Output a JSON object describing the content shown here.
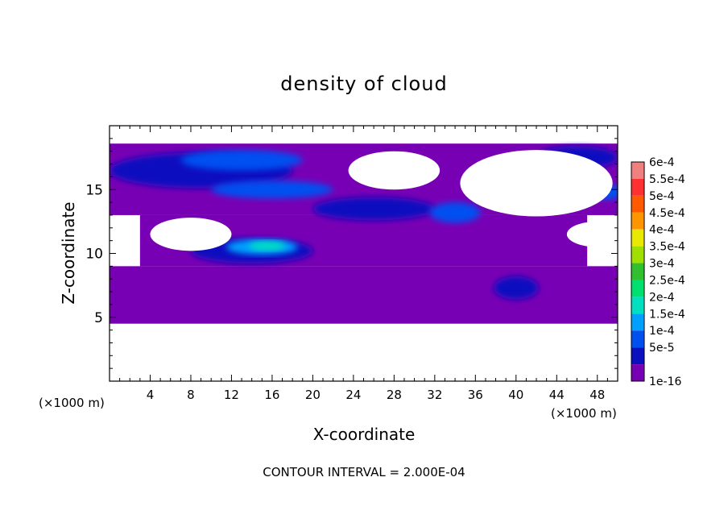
{
  "chart_data": {
    "type": "heatmap",
    "title": "density of cloud",
    "xlabel": "X-coordinate",
    "ylabel": "Z-coordinate",
    "x_unit_left": "(×1000 m)",
    "x_unit_right": "(×1000 m)",
    "xlim": [
      0,
      50
    ],
    "ylim": [
      0,
      20
    ],
    "x_ticks": [
      {
        "value": 4,
        "label": "4"
      },
      {
        "value": 8,
        "label": "8"
      },
      {
        "value": 12,
        "label": "12"
      },
      {
        "value": 16,
        "label": "16"
      },
      {
        "value": 20,
        "label": "20"
      },
      {
        "value": 24,
        "label": "24"
      },
      {
        "value": 28,
        "label": "28"
      },
      {
        "value": 32,
        "label": "32"
      },
      {
        "value": 36,
        "label": "36"
      },
      {
        "value": 40,
        "label": "40"
      },
      {
        "value": 44,
        "label": "44"
      },
      {
        "value": 48,
        "label": "48"
      }
    ],
    "y_ticks": [
      {
        "value": 5,
        "label": "5"
      },
      {
        "value": 10,
        "label": "10"
      },
      {
        "value": 15,
        "label": "15"
      }
    ],
    "footer": "CONTOUR INTERVAL = 2.000E-04",
    "colorbar": {
      "levels": [
        {
          "label": "6e-4",
          "color": "#f08080"
        },
        {
          "label": "5.5e-4",
          "color": "#ff3030"
        },
        {
          "label": "5e-4",
          "color": "#ff5a00"
        },
        {
          "label": "4.5e-4",
          "color": "#ff9600"
        },
        {
          "label": "4e-4",
          "color": "#e8e800"
        },
        {
          "label": "3.5e-4",
          "color": "#a0e000"
        },
        {
          "label": "3e-4",
          "color": "#30c030"
        },
        {
          "label": "2.5e-4",
          "color": "#00e070"
        },
        {
          "label": "2e-4",
          "color": "#00e0c0"
        },
        {
          "label": "1.5e-4",
          "color": "#00a0ff"
        },
        {
          "label": "1e-4",
          "color": "#0050f0"
        },
        {
          "label": "5e-5",
          "color": "#0a10c0"
        },
        {
          "label": "1e-16",
          "color": "#7800b4"
        }
      ]
    },
    "regions": [
      {
        "kind": "band",
        "x": [
          0,
          50
        ],
        "z": [
          4.5,
          9.0
        ],
        "level": 0
      },
      {
        "kind": "band",
        "x": [
          0,
          50
        ],
        "z": [
          13.0,
          18.6
        ],
        "level": 0
      },
      {
        "kind": "band",
        "x": [
          3,
          47
        ],
        "z": [
          9.0,
          13.0
        ],
        "level": 0
      },
      {
        "kind": "blob",
        "cx": 9,
        "cz": 16.5,
        "rx": 9,
        "rz": 1.4,
        "level": 1
      },
      {
        "kind": "blob",
        "cx": 13,
        "cz": 17.3,
        "rx": 6,
        "rz": 0.8,
        "level": 2
      },
      {
        "kind": "blob",
        "cx": 16,
        "cz": 15.0,
        "rx": 6,
        "rz": 0.7,
        "level": 2
      },
      {
        "kind": "blob",
        "cx": 26,
        "cz": 13.5,
        "rx": 6,
        "rz": 0.9,
        "level": 1
      },
      {
        "kind": "blob",
        "cx": 34,
        "cz": 13.2,
        "rx": 2.5,
        "rz": 0.8,
        "level": 2
      },
      {
        "kind": "blob",
        "cx": 14,
        "cz": 10.2,
        "rx": 6,
        "rz": 1.0,
        "level": 1
      },
      {
        "kind": "blob",
        "cx": 15,
        "cz": 10.5,
        "rx": 3.5,
        "rz": 0.6,
        "level": 3
      },
      {
        "kind": "blob",
        "cx": 15.5,
        "cz": 10.6,
        "rx": 1.8,
        "rz": 0.35,
        "level": 4
      },
      {
        "kind": "blob",
        "cx": 40,
        "cz": 7.3,
        "rx": 2.2,
        "rz": 0.9,
        "level": 1
      },
      {
        "kind": "blob",
        "cx": 46,
        "cz": 17.5,
        "rx": 4,
        "rz": 0.9,
        "level": 1
      },
      {
        "kind": "blob",
        "cx": 49,
        "cz": 14.8,
        "rx": 1.5,
        "rz": 0.6,
        "level": 2
      }
    ],
    "clear_regions": [
      {
        "cx": 42,
        "cz": 15.5,
        "rx": 7.5,
        "rz": 2.6
      },
      {
        "cx": 28,
        "cz": 16.5,
        "rx": 4.5,
        "rz": 1.5
      },
      {
        "cx": 8,
        "cz": 11.5,
        "rx": 4,
        "rz": 1.3
      },
      {
        "cx": 48,
        "cz": 11.5,
        "rx": 3,
        "rz": 1.0
      }
    ]
  }
}
